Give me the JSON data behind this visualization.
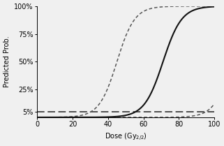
{
  "title": "",
  "xlabel": "Dose (Gy$_{2/2}$)",
  "ylabel": "Predicted Prob.",
  "xlim": [
    0,
    100
  ],
  "ylim": [
    0,
    1.0
  ],
  "yticks": [
    0.05,
    0.25,
    0.5,
    0.75,
    1.0
  ],
  "ytick_labels": [
    "5%",
    "25%",
    "50%",
    "75%",
    "100%"
  ],
  "xticks": [
    0,
    20,
    40,
    60,
    80,
    100
  ],
  "hline_y": 0.05,
  "logistic_intercept": -13.5,
  "logistic_slope": 0.19,
  "ci_upper_intercept": -9.0,
  "ci_upper_slope": 0.2,
  "ci_lower_intercept": -22.0,
  "ci_lower_slope": 0.2,
  "line_color": "#111111",
  "ci_color": "#555555",
  "hline_color": "#222222",
  "background_color": "#f0f0f0",
  "fontsize": 7.0,
  "figsize": [
    3.21,
    2.09
  ],
  "dpi": 100
}
